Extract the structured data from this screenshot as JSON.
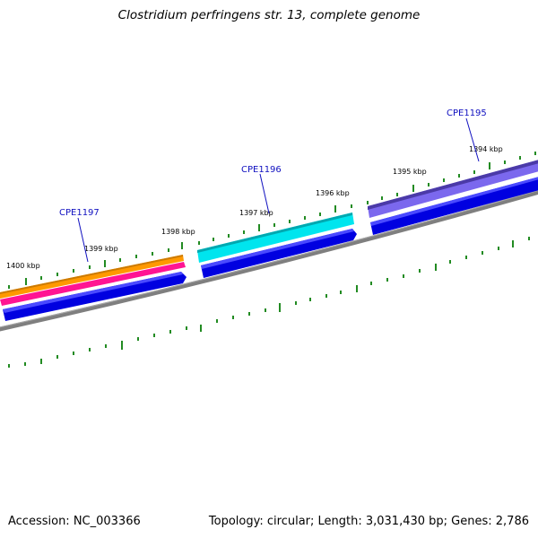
{
  "title": "Clostridium perfringens str. 13, complete genome",
  "footer": {
    "accession": "Accession: NC_003366",
    "info": "Topology: circular; Length: 3,031,430 bp; Genes: 2,786"
  },
  "ticks": [
    "1400 kbp",
    "1399 kbp",
    "1398 kbp",
    "1397 kbp",
    "1396 kbp",
    "1395 kbp",
    "1394 kbp"
  ],
  "genes": [
    {
      "label": "CPE1197",
      "track_colors": [
        "#ff9900",
        "#ff1493"
      ]
    },
    {
      "label": "CPE1196",
      "track_colors": [
        "#00e5ee"
      ]
    },
    {
      "label": "CPE1195",
      "track_colors": [
        "#7b68ee"
      ]
    }
  ],
  "colors": {
    "cds_strand": "#0000e0",
    "backbone": "#7f7f7f",
    "tick": "#228b22",
    "gene_label": "#1010c0"
  }
}
